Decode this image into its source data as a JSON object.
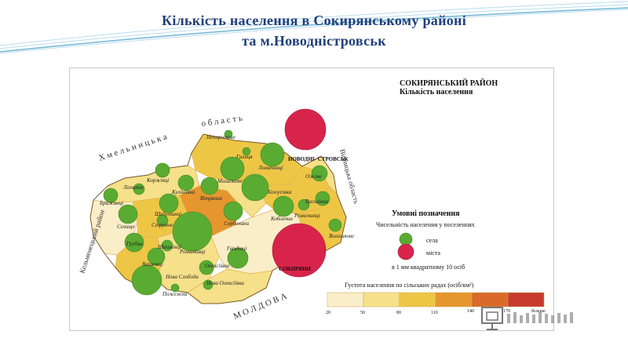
{
  "slide": {
    "title_line1": "Кількість  населення в Сокирянському районі",
    "title_line2": "та м.Новодністровськ"
  },
  "map": {
    "header": {
      "line1": "СОКИРЯНСЬКИЙ РАЙОН",
      "line2": "Кількість населення"
    },
    "regions": {
      "khmelnytska_word1": "Х м е л ь н и ц ь к а",
      "khmelnytska_word2": "о б л а с т ь",
      "kelmenetskyi": "Кельменецький район",
      "vinnytska": "Вінницька область",
      "moldova": "М О Л Д О В А"
    },
    "settlements": [
      {
        "name": "Непоротове",
        "kind": "village"
      },
      {
        "name": "Галиця",
        "kind": "village"
      },
      {
        "name": "Ломачинці",
        "kind": "village"
      },
      {
        "name": "Коржівці",
        "kind": "village"
      },
      {
        "name": "Кулішівка",
        "kind": "village"
      },
      {
        "name": "Михалкове",
        "kind": "village"
      },
      {
        "name": "Білоусівка",
        "kind": "village"
      },
      {
        "name": "Ожеве",
        "kind": "village"
      },
      {
        "name": "Лопатів",
        "kind": "village"
      },
      {
        "name": "Бражинці",
        "kind": "village"
      },
      {
        "name": "Вітрянка",
        "kind": "village"
      },
      {
        "name": "Шебутинці",
        "kind": "village"
      },
      {
        "name": "Селище",
        "kind": "village"
      },
      {
        "name": "Романківці",
        "kind": "village"
      },
      {
        "name": "Сербичани",
        "kind": "village"
      },
      {
        "name": "Коболчин",
        "kind": "village"
      },
      {
        "name": "Розкопинці",
        "kind": "village"
      },
      {
        "name": "Василівка",
        "kind": "village"
      },
      {
        "name": "Волошкове",
        "kind": "village"
      },
      {
        "name": "Струмок",
        "kind": "village"
      },
      {
        "name": "Грубна",
        "kind": "village"
      },
      {
        "name": "Шишківці",
        "kind": "village"
      },
      {
        "name": "Гвіздівці",
        "kind": "village"
      },
      {
        "name": "Вашківці",
        "kind": "village"
      },
      {
        "name": "Олексіївка",
        "kind": "village"
      },
      {
        "name": "Нова Слобода",
        "kind": "village"
      },
      {
        "name": "Нова Олексіївка",
        "kind": "village"
      },
      {
        "name": "Пожежна",
        "kind": "village"
      },
      {
        "name": "НОВОДНІ- СТРОВСЬК",
        "kind": "city"
      },
      {
        "name": "СОКИРЯНИ",
        "kind": "city"
      }
    ],
    "legend": {
      "title": "Умовні позначення",
      "subtitle": "Чисельність населення у поселеннях",
      "village_label": "села",
      "city_label": "міста",
      "scale_note": "в 1 мм квадратному 10 осіб",
      "village_color": "#5aab32",
      "city_color": "#d8244a"
    },
    "density_scale": {
      "title": "Густота населення по сільських радах (осіб/км²)",
      "ticks": [
        "20",
        "50",
        "80",
        "110",
        "140",
        "170",
        "більше"
      ],
      "colors": [
        "#faeec8",
        "#f6e08a",
        "#eec646",
        "#e6962e",
        "#d96a2a",
        "#c63a2e"
      ]
    }
  }
}
